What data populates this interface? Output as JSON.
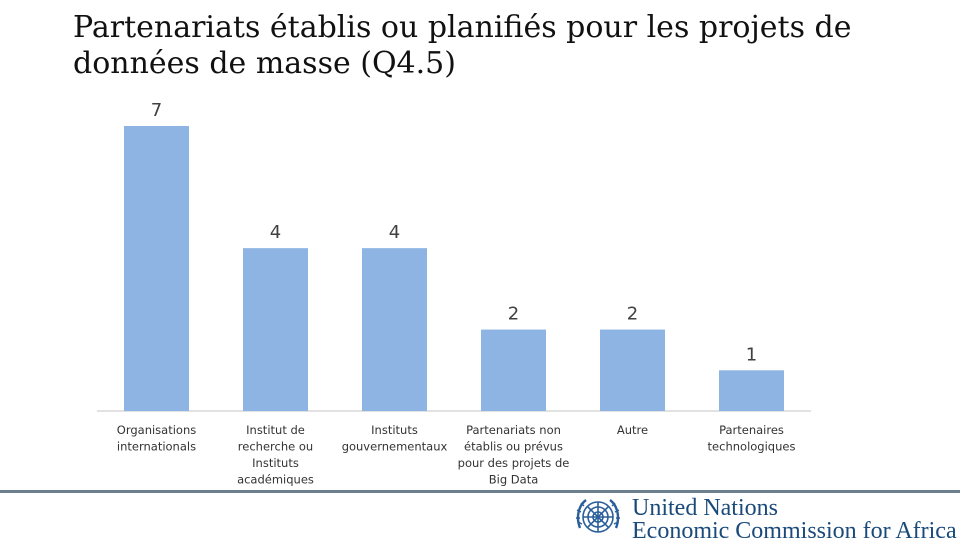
{
  "title_line1": "Partenariats établis ou planifiés pour les projets de",
  "title_line2": "données de masse (Q4.5)",
  "chart_data": {
    "type": "bar",
    "title": "Partenariats établis ou planifiés pour les projets de données de masse (Q4.5)",
    "categories": [
      [
        "Organisations",
        "internationals"
      ],
      [
        "Institut de",
        "recherche ou",
        "Instituts",
        "académiques"
      ],
      [
        "Instituts",
        "gouvernementaux"
      ],
      [
        "Partenariats non",
        "établis ou prévus",
        "pour des projets de",
        "Big Data"
      ],
      [
        "Autre"
      ],
      [
        "Partenaires",
        "technologiques"
      ]
    ],
    "values": [
      7,
      4,
      4,
      2,
      2,
      1
    ],
    "ylim": [
      0,
      7
    ],
    "grid": false,
    "bar_color": "#8db4e2",
    "axis_color": "#d9d9d9",
    "label_color": "#404040"
  },
  "footer": {
    "org_line1": "United Nations",
    "org_line2": "Economic Commission for Africa",
    "logo_color": "#2b5f9a"
  }
}
